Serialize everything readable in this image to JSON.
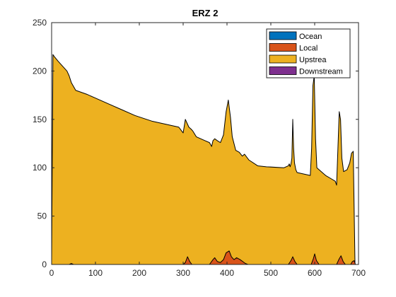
{
  "chart_data": {
    "type": "area",
    "title": "ERZ 2",
    "xlabel": "",
    "ylabel": "",
    "xlim": [
      0,
      700
    ],
    "ylim": [
      0,
      250
    ],
    "x_ticks": [
      0,
      100,
      200,
      300,
      400,
      500,
      600,
      700
    ],
    "y_ticks": [
      0,
      50,
      100,
      150,
      200,
      250
    ],
    "stacked": true,
    "legend_position": "top-right",
    "series": [
      {
        "name": "Ocean",
        "color": "#0072BD",
        "x": [
          0,
          700
        ],
        "values": [
          0,
          0
        ]
      },
      {
        "name": "Local",
        "color": "#D95319",
        "x": [
          0,
          40,
          45,
          50,
          60,
          300,
          305,
          310,
          315,
          320,
          360,
          368,
          372,
          378,
          385,
          392,
          398,
          405,
          410,
          416,
          422,
          430,
          436,
          442,
          448,
          540,
          546,
          550,
          555,
          560,
          592,
          597,
          600,
          604,
          610,
          650,
          655,
          660,
          665,
          670,
          682,
          686,
          690,
          693
        ],
        "values": [
          0,
          0,
          1,
          0,
          0,
          0,
          2,
          8,
          3,
          0,
          0,
          5,
          7,
          3,
          2,
          5,
          12,
          14,
          8,
          5,
          7,
          5,
          3,
          1,
          0,
          0,
          4,
          8,
          3,
          0,
          0,
          6,
          11,
          4,
          0,
          0,
          5,
          9,
          3,
          0,
          0,
          3,
          4,
          0
        ]
      },
      {
        "name": "Upstrea",
        "color": "#EDB120",
        "x": [
          0,
          3,
          6,
          15,
          25,
          35,
          40,
          45,
          55,
          80,
          100,
          130,
          160,
          190,
          210,
          230,
          260,
          290,
          300,
          305,
          310,
          313,
          318,
          322,
          330,
          350,
          360,
          365,
          368,
          372,
          378,
          385,
          392,
          398,
          403,
          408,
          412,
          416,
          420,
          428,
          435,
          440,
          450,
          470,
          490,
          530,
          540,
          542,
          544,
          546,
          548,
          550,
          552,
          554,
          557,
          560,
          590,
          593,
          596,
          599,
          602,
          605,
          610,
          625,
          640,
          647,
          650,
          653,
          656,
          659,
          662,
          666,
          674,
          680,
          684,
          688,
          692
        ],
        "values": [
          0,
          217,
          215,
          210,
          205,
          200,
          195,
          188,
          180,
          176,
          172,
          166,
          160,
          154,
          151,
          148,
          145,
          142,
          136,
          150,
          145,
          142,
          140,
          138,
          132,
          128,
          126,
          122,
          128,
          130,
          128,
          126,
          134,
          158,
          170,
          152,
          132,
          125,
          118,
          116,
          112,
          114,
          108,
          102,
          101,
          100,
          102,
          104,
          101,
          104,
          110,
          150,
          120,
          105,
          98,
          95,
          92,
          120,
          185,
          195,
          130,
          100,
          98,
          92,
          88,
          86,
          82,
          120,
          158,
          150,
          110,
          96,
          98,
          105,
          115,
          117,
          0
        ]
      },
      {
        "name": "Downstream",
        "color": "#7E2F8E",
        "x": [
          0,
          700
        ],
        "values": [
          0,
          0
        ]
      }
    ]
  }
}
